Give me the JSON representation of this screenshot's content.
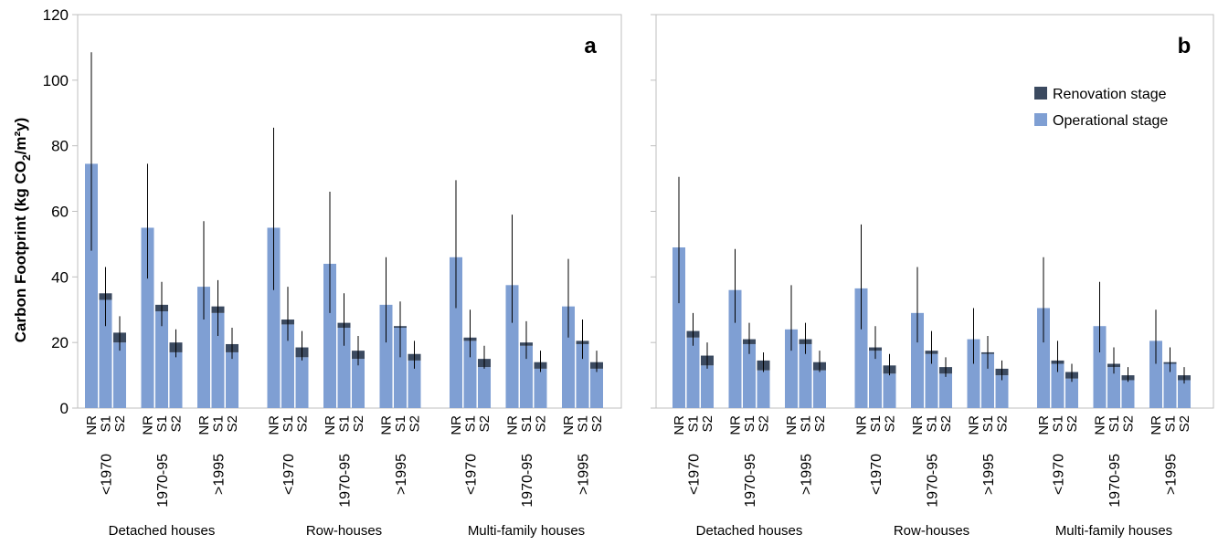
{
  "colors": {
    "operational": "#7f9fd3",
    "renovation": "#3b4a60",
    "error_bar": "#000000",
    "frame": "#bfbfbf"
  },
  "y_axis": {
    "label_main": "Carbon Footprint (kg CO",
    "label_sub": "2",
    "label_end": "/m²y)",
    "ticks": [
      "0",
      "20",
      "40",
      "60",
      "80",
      "100",
      "120"
    ]
  },
  "legend": {
    "renovation": "Renovation stage",
    "operational": "Operational stage"
  },
  "chart_data": [
    {
      "type": "bar",
      "panel": "a",
      "stacked": true,
      "ylim": [
        0,
        120
      ],
      "ylabel": "Carbon Footprint (kg CO2/m²y)",
      "legend_position": "top-right",
      "scenarios": [
        "NR",
        "S1",
        "S2"
      ],
      "age_groups": [
        "<1970",
        "1970-95",
        ">1995"
      ],
      "building_types": [
        "Detached houses",
        "Row-houses",
        "Multi-family houses"
      ],
      "series": [
        {
          "name": "Operational stage",
          "values": [
            74.5,
            33.0,
            20.0,
            55.0,
            29.5,
            17.0,
            37.0,
            29.0,
            17.0,
            55.0,
            25.5,
            15.5,
            44.0,
            24.5,
            15.0,
            31.5,
            24.5,
            14.5,
            46.0,
            20.5,
            12.5,
            37.5,
            19.0,
            12.0,
            31.0,
            19.5,
            12.0
          ]
        },
        {
          "name": "Renovation stage",
          "values": [
            0,
            2.0,
            3.0,
            0,
            2.0,
            3.0,
            0,
            2.0,
            2.5,
            0,
            1.5,
            3.0,
            0,
            1.5,
            2.5,
            0,
            0.5,
            2.0,
            0,
            1.0,
            2.5,
            0,
            1.0,
            2.0,
            0,
            1.0,
            2.0
          ]
        }
      ],
      "error_low": [
        48.0,
        25.0,
        17.5,
        39.5,
        25.0,
        15.5,
        27.0,
        22.0,
        15.0,
        36.0,
        20.5,
        14.5,
        29.0,
        19.0,
        13.0,
        20.0,
        15.5,
        12.0,
        30.5,
        15.5,
        12.0,
        26.0,
        15.0,
        11.0,
        21.5,
        15.0,
        11.0
      ],
      "error_high": [
        108.5,
        43.0,
        28.0,
        74.5,
        38.5,
        24.0,
        57.0,
        39.0,
        24.5,
        85.5,
        37.0,
        23.5,
        66.0,
        35.0,
        22.0,
        46.0,
        32.5,
        20.5,
        69.5,
        30.0,
        19.0,
        59.0,
        26.5,
        17.5,
        45.5,
        27.0,
        17.5
      ]
    },
    {
      "type": "bar",
      "panel": "b",
      "stacked": true,
      "ylim": [
        0,
        120
      ],
      "legend_position": "top-right",
      "scenarios": [
        "NR",
        "S1",
        "S2"
      ],
      "age_groups": [
        "<1970",
        "1970-95",
        ">1995"
      ],
      "building_types": [
        "Detached houses",
        "Row-houses",
        "Multi-family houses"
      ],
      "series": [
        {
          "name": "Operational stage",
          "values": [
            49.0,
            21.5,
            13.0,
            36.0,
            19.5,
            11.5,
            24.0,
            19.5,
            11.5,
            36.5,
            17.5,
            10.5,
            29.0,
            16.5,
            10.5,
            21.0,
            16.5,
            10.0,
            30.5,
            13.5,
            9.0,
            25.0,
            12.5,
            8.5,
            20.5,
            13.5,
            8.5
          ]
        },
        {
          "name": "Renovation stage",
          "values": [
            0,
            2.0,
            3.0,
            0,
            1.5,
            3.0,
            0,
            1.5,
            2.5,
            0,
            1.0,
            2.5,
            0,
            1.0,
            2.0,
            0,
            0.5,
            2.0,
            0,
            1.0,
            2.0,
            0,
            1.0,
            1.5,
            0,
            0.5,
            1.5
          ]
        }
      ],
      "error_low": [
        32.0,
        19.0,
        12.0,
        26.0,
        16.5,
        11.0,
        17.5,
        16.5,
        11.0,
        24.0,
        15.0,
        10.0,
        20.0,
        13.5,
        9.5,
        13.5,
        12.0,
        8.5,
        20.0,
        11.0,
        8.0,
        17.0,
        10.5,
        8.0,
        13.5,
        11.0,
        7.5
      ],
      "error_high": [
        70.5,
        29.0,
        20.0,
        48.5,
        26.0,
        17.0,
        37.5,
        26.0,
        17.5,
        56.0,
        25.0,
        16.5,
        43.0,
        23.5,
        15.5,
        30.5,
        22.0,
        14.5,
        46.0,
        20.5,
        13.5,
        38.5,
        18.5,
        12.5,
        30.0,
        18.5,
        12.5
      ]
    }
  ]
}
